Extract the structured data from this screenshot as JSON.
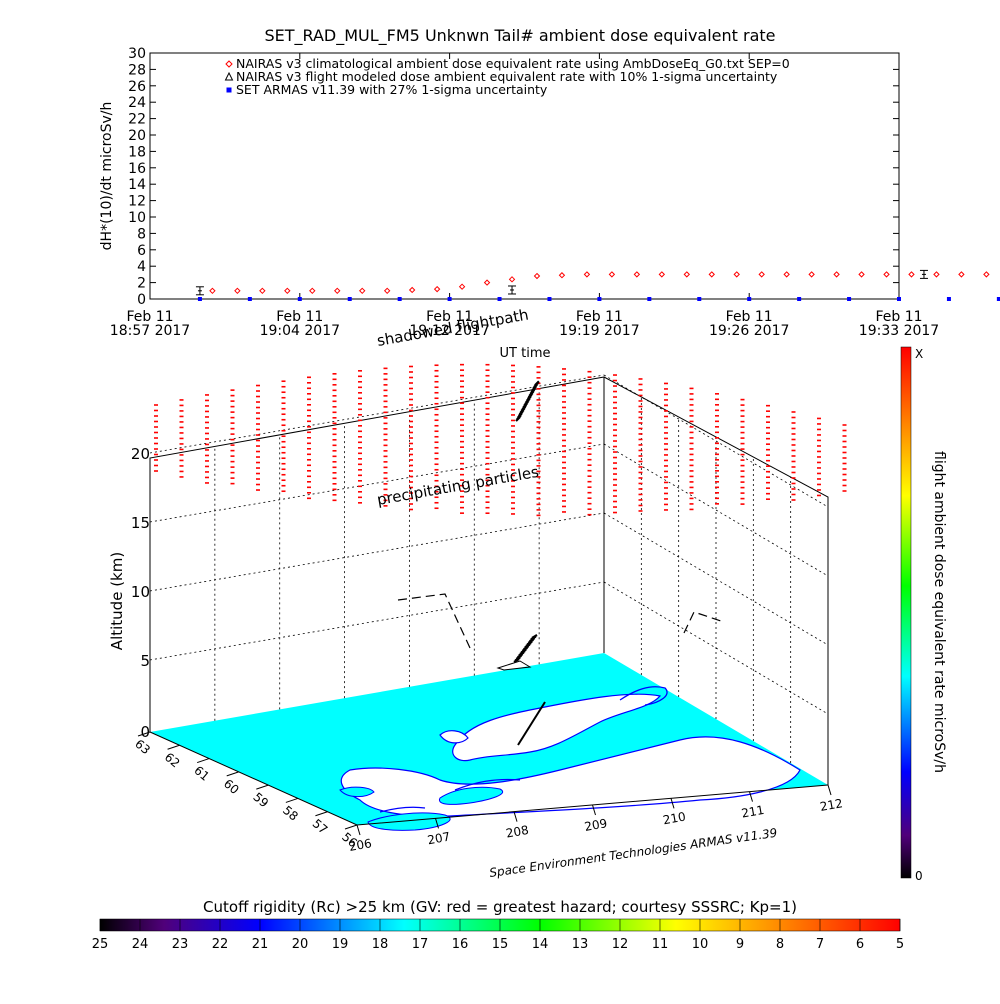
{
  "chart_data": [
    {
      "type": "scatter",
      "title": "SET_RAD_MUL_FM5 Unknwn Tail#  ambient dose equivalent rate",
      "ylabel": "dH*(10)/dt microSv/h",
      "xlabel": "UT time",
      "ylim": [
        0,
        30
      ],
      "yticks": [
        "0",
        "2",
        "4",
        "6",
        "8",
        "10",
        "12",
        "14",
        "16",
        "18",
        "20",
        "22",
        "24",
        "26",
        "28",
        "30"
      ],
      "xlim": [
        "18:57",
        "19:33"
      ],
      "xticks": [
        {
          "day": "Feb 11",
          "time": "18:57 2017"
        },
        {
          "day": "Feb 11",
          "time": "19:04 2017"
        },
        {
          "day": "Feb 11",
          "time": "19:12 2017"
        },
        {
          "day": "Feb 11",
          "time": "19:19 2017"
        },
        {
          "day": "Feb 11",
          "time": "19:26 2017"
        },
        {
          "day": "Feb 11",
          "time": "19:33 2017"
        }
      ],
      "legend": [
        {
          "marker": "diamond",
          "color": "#ff0000",
          "label": "NAIRAS v3 climatological ambient dose equivalent rate using AmbDoseEq_G0.txt SEP=0"
        },
        {
          "marker": "triangle",
          "color": "#000000",
          "label": "NAIRAS v3 flight modeled dose ambient equivalent rate with 10% 1-sigma uncertainty"
        },
        {
          "marker": "square",
          "color": "#0000ff",
          "label": "SET ARMAS v11.39 with 27% 1-sigma uncertainty"
        }
      ],
      "series": [
        {
          "name": "NAIRAS v3 climatological ambient dose equivalent rate using AmbDoseEq_G0.txt SEP=0",
          "x": [
            19.0,
            19.02,
            19.04,
            19.06,
            19.08,
            19.1,
            19.12,
            19.14,
            19.16,
            19.18,
            19.2,
            19.22,
            19.24,
            19.26,
            19.28,
            19.3,
            19.32,
            19.34,
            19.36,
            19.38,
            19.4,
            19.42,
            19.44,
            19.46,
            19.48,
            19.5,
            19.52,
            19.54,
            19.56,
            19.58,
            19.6,
            19.62,
            19.64,
            19.66,
            19.68,
            19.7,
            19.72,
            19.74
          ],
          "x_units": "UT hours",
          "values": [
            1.0,
            1.0,
            1.0,
            1.0,
            1.0,
            1.0,
            1.0,
            1.0,
            1.1,
            1.2,
            1.5,
            2.0,
            2.4,
            2.8,
            2.9,
            3.0,
            3.0,
            3.0,
            3.0,
            3.0,
            3.0,
            3.0,
            3.0,
            3.0,
            3.0,
            3.0,
            3.0,
            3.0,
            3.0,
            3.0,
            3.0,
            3.0,
            3.0,
            3.0,
            3.0,
            3.0,
            3.0,
            3.0
          ]
        },
        {
          "name": "NAIRAS v3 flight modeled dose ambient equivalent rate with 10% 1-sigma uncertainty",
          "x": [
            18.99,
            19.24,
            19.57,
            19.7
          ],
          "x_units": "UT hours",
          "values": [
            1.0,
            1.1,
            3.0,
            3.0
          ]
        },
        {
          "name": "SET ARMAS v11.39 with 27% 1-sigma uncertainty",
          "x": [
            18.99,
            19.03,
            19.07,
            19.11,
            19.15,
            19.19,
            19.23,
            19.27,
            19.31,
            19.35,
            19.39,
            19.43,
            19.47,
            19.51,
            19.55,
            19.59,
            19.63,
            19.67,
            19.71,
            19.74
          ],
          "x_units": "UT hours",
          "values": [
            0,
            0,
            0,
            0,
            0,
            0,
            0,
            0,
            0,
            0,
            0,
            0,
            0,
            0,
            0,
            0,
            0,
            0,
            0,
            0
          ]
        }
      ]
    },
    {
      "type": "scatter",
      "title": "",
      "zlabel": "Altitude (km)",
      "zticks": [
        "0",
        "5",
        "10",
        "15",
        "20"
      ],
      "xticks": [
        "206",
        "207",
        "208",
        "209",
        "210",
        "211",
        "212"
      ],
      "yticks": [
        "63",
        "62",
        "61",
        "60",
        "59",
        "58",
        "57",
        "56"
      ],
      "annotations": [
        "shadowed flightpath",
        "precipitating particles",
        "Space Environment Technologies ARMAS v11.39"
      ],
      "colorbar_right": {
        "label": "flight ambient dose equivalent rate microSv/h",
        "min_label": "0",
        "max_label": "X"
      },
      "colorbar_bottom": {
        "label": "Cutoff rigidity (Rc) >25 km (GV: red = greatest hazard; courtesy SSSRC; Kp=1)",
        "ticks": [
          "25",
          "24",
          "23",
          "22",
          "21",
          "20",
          "19",
          "18",
          "17",
          "16",
          "15",
          "14",
          "13",
          "12",
          "11",
          "10",
          "9",
          "8",
          "7",
          "6",
          "5"
        ]
      },
      "colors": {
        "land": "#00ffff",
        "coast": "#0000ff",
        "precip": "#ff0000",
        "flight": "#000000"
      }
    }
  ]
}
